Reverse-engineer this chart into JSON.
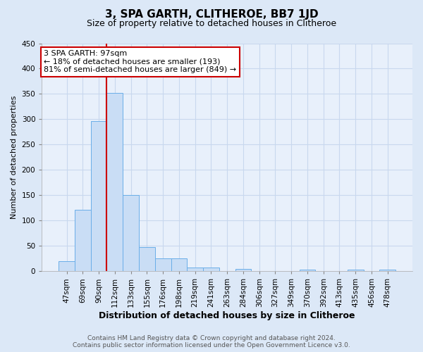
{
  "title": "3, SPA GARTH, CLITHEROE, BB7 1JD",
  "subtitle": "Size of property relative to detached houses in Clitheroe",
  "xlabel": "Distribution of detached houses by size in Clitheroe",
  "ylabel": "Number of detached properties",
  "categories": [
    "47sqm",
    "69sqm",
    "90sqm",
    "112sqm",
    "133sqm",
    "155sqm",
    "176sqm",
    "198sqm",
    "219sqm",
    "241sqm",
    "263sqm",
    "284sqm",
    "306sqm",
    "327sqm",
    "349sqm",
    "370sqm",
    "392sqm",
    "413sqm",
    "435sqm",
    "456sqm",
    "478sqm"
  ],
  "values": [
    20,
    122,
    297,
    352,
    150,
    48,
    25,
    25,
    7,
    7,
    0,
    5,
    0,
    0,
    0,
    3,
    0,
    0,
    3,
    0,
    3
  ],
  "bar_color": "#c9ddf5",
  "bar_edge_color": "#6aaee8",
  "fig_background_color": "#dce8f7",
  "ax_background_color": "#e8f0fb",
  "grid_color": "#c8d8ee",
  "red_line_x": 2.5,
  "annotation_title": "3 SPA GARTH: 97sqm",
  "annotation_line1": "← 18% of detached houses are smaller (193)",
  "annotation_line2": "81% of semi-detached houses are larger (849) →",
  "annotation_box_color": "#ffffff",
  "annotation_box_edge": "#cc0000",
  "red_line_color": "#cc0000",
  "ylim": [
    0,
    450
  ],
  "yticks": [
    0,
    50,
    100,
    150,
    200,
    250,
    300,
    350,
    400,
    450
  ],
  "footer_line1": "Contains HM Land Registry data © Crown copyright and database right 2024.",
  "footer_line2": "Contains public sector information licensed under the Open Government Licence v3.0.",
  "title_fontsize": 11,
  "subtitle_fontsize": 9,
  "xlabel_fontsize": 9,
  "ylabel_fontsize": 8,
  "tick_fontsize": 7.5,
  "annotation_fontsize": 8,
  "footer_fontsize": 6.5
}
